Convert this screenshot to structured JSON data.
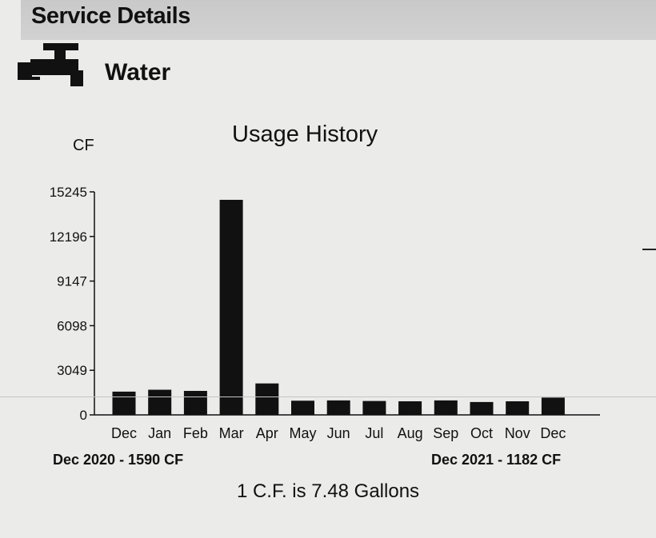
{
  "section": {
    "title": "Service Details"
  },
  "service": {
    "name": "Water",
    "icon": "water-faucet-icon"
  },
  "chart_data": {
    "type": "bar",
    "title": "Usage History",
    "ylabel": "CF",
    "xlabel": "",
    "categories": [
      "Dec",
      "Jan",
      "Feb",
      "Mar",
      "Apr",
      "May",
      "Jun",
      "Jul",
      "Aug",
      "Sep",
      "Oct",
      "Nov",
      "Dec"
    ],
    "values": [
      1590,
      1720,
      1640,
      14700,
      2150,
      970,
      990,
      950,
      930,
      990,
      880,
      930,
      1182
    ],
    "yticks": [
      "0",
      "3049",
      "6098",
      "9147",
      "12196",
      "15245"
    ],
    "ylim": [
      0,
      15245
    ],
    "grid": false,
    "legend": "none",
    "bar_color": "#111111"
  },
  "period": {
    "start": "Dec 2020 - 1590 CF",
    "end": "Dec 2021 - 1182 CF"
  },
  "footnote": "1 C.F. is 7.48 Gallons"
}
